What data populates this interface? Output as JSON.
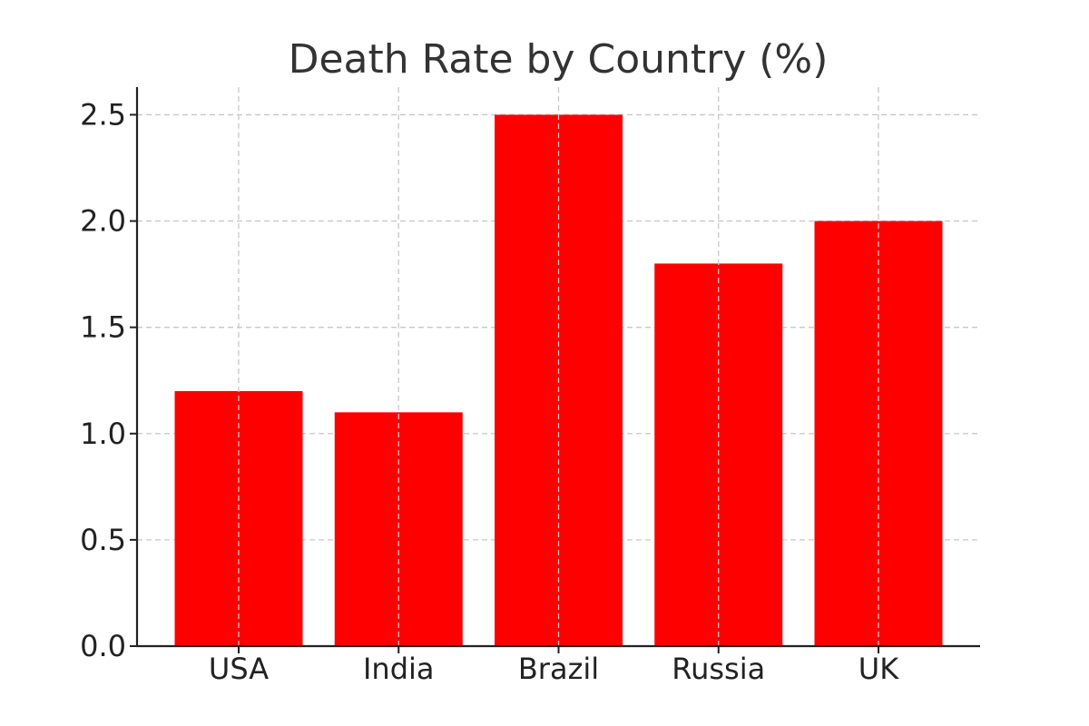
{
  "chart_data": {
    "type": "bar",
    "title": "Death Rate by Country (%)",
    "xlabel": "",
    "ylabel": "",
    "categories": [
      "USA",
      "India",
      "Brazil",
      "Russia",
      "UK"
    ],
    "values": [
      1.2,
      1.1,
      2.5,
      1.8,
      2.0
    ],
    "ylim": [
      0,
      2.63
    ],
    "yticks": [
      0.0,
      0.5,
      1.0,
      1.5,
      2.0,
      2.5
    ],
    "ytick_labels": [
      "0.0",
      "0.5",
      "1.0",
      "1.5",
      "2.0",
      "2.5"
    ],
    "bar_color": "#ff0000",
    "grid": true,
    "legend": false
  }
}
